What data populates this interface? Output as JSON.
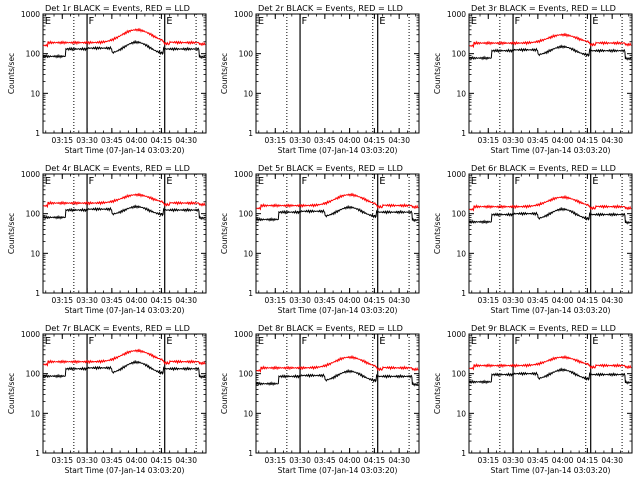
{
  "chart_data": {
    "type": "line",
    "ylabel": "Counts/sec",
    "xlabel": "Start Time (07-Jan-14 03:03:20)",
    "x_tick_labels": [
      "03:15",
      "03:30",
      "03:45",
      "04:00",
      "04:15",
      "04:30"
    ],
    "x_tick_minutes": [
      15,
      30,
      45,
      60,
      75,
      90
    ],
    "x_range_minutes": [
      3.33,
      102
    ],
    "y_scale": "log",
    "ylim": [
      1,
      1000
    ],
    "y_tick_labels": [
      "1",
      "10",
      "100",
      "1000"
    ],
    "y_tick_values": [
      1,
      10,
      100,
      1000
    ],
    "legend": "BLACK = Events, RED = LLD",
    "series_colors": {
      "events": "#000000",
      "lld": "#ff0000"
    },
    "marker_labels": [
      "E",
      "F",
      "E"
    ],
    "marker_minutes": [
      3.5,
      30,
      77
    ],
    "dotted_line_minutes": [
      22,
      74,
      96
    ],
    "panels": [
      {
        "title": "Det 1r",
        "red_level": 190,
        "black_level": 138,
        "red_hump": 400,
        "black_hump": 195,
        "has_data": true
      },
      {
        "title": "Det 2r",
        "red_level": 0,
        "black_level": 0,
        "red_hump": 0,
        "black_hump": 0,
        "has_data": false
      },
      {
        "title": "Det 3r",
        "red_level": 185,
        "black_level": 125,
        "red_hump": 300,
        "black_hump": 150,
        "has_data": true
      },
      {
        "title": "Det 4r",
        "red_level": 185,
        "black_level": 130,
        "red_hump": 300,
        "black_hump": 150,
        "has_data": true
      },
      {
        "title": "Det 5r",
        "red_level": 160,
        "black_level": 115,
        "red_hump": 300,
        "black_hump": 145,
        "has_data": true
      },
      {
        "title": "Det 6r",
        "red_level": 150,
        "black_level": 100,
        "red_hump": 260,
        "black_hump": 130,
        "has_data": true
      },
      {
        "title": "Det 7r",
        "red_level": 200,
        "black_level": 140,
        "red_hump": 380,
        "black_hump": 195,
        "has_data": true
      },
      {
        "title": "Det 8r",
        "red_level": 140,
        "black_level": 90,
        "red_hump": 260,
        "black_hump": 115,
        "has_data": true
      },
      {
        "title": "Det 9r",
        "red_level": 160,
        "black_level": 100,
        "red_hump": 260,
        "black_hump": 125,
        "has_data": true
      }
    ]
  }
}
